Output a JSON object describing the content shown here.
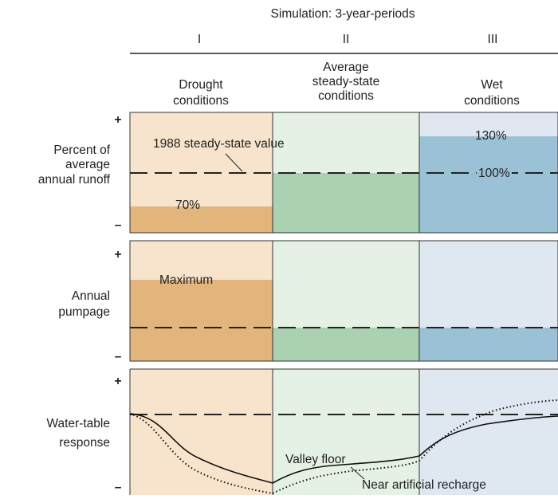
{
  "title": "Simulation: 3-year-periods",
  "periods": [
    {
      "numeral": "I",
      "label_lines": [
        "Drought",
        "conditions"
      ]
    },
    {
      "numeral": "II",
      "label_lines": [
        "Average",
        "steady-state",
        "conditions"
      ]
    },
    {
      "numeral": "III",
      "label_lines": [
        "Wet",
        "conditions"
      ]
    }
  ],
  "rows": [
    {
      "label_lines": [
        "Percent of",
        "average",
        "annual runoff"
      ],
      "plus": "+",
      "minus": "–"
    },
    {
      "label_lines": [
        "Annual",
        "pumpage"
      ],
      "plus": "+",
      "minus": "–"
    },
    {
      "label_lines": [
        "Water-table",
        "response"
      ],
      "plus": "+",
      "minus": "–"
    }
  ],
  "annotations": {
    "steady_state": "1988 steady-state value",
    "low": "70%",
    "high": "130%",
    "average": "100%",
    "maximum": "Maximum",
    "valley_floor": "Valley floor",
    "near_recharge": "Near artificial recharge"
  }
}
